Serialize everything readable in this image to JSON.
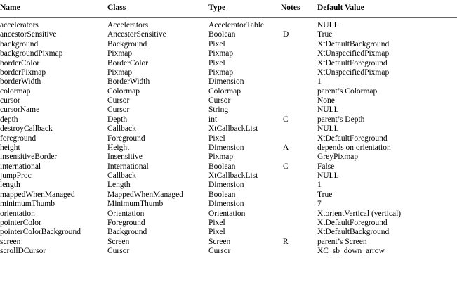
{
  "table": {
    "headers": [
      "Name",
      "Class",
      "Type",
      "Notes",
      "Default Value"
    ],
    "rows": [
      [
        "accelerators",
        "Accelerators",
        "AcceleratorTable",
        "",
        "NULL"
      ],
      [
        "ancestorSensitive",
        "AncestorSensitive",
        "Boolean",
        "D",
        "True"
      ],
      [
        "background",
        "Background",
        "Pixel",
        "",
        "XtDefaultBackground"
      ],
      [
        "backgroundPixmap",
        "Pixmap",
        "Pixmap",
        "",
        "XtUnspecifiedPixmap"
      ],
      [
        "borderColor",
        "BorderColor",
        "Pixel",
        "",
        "XtDefaultForeground"
      ],
      [
        "borderPixmap",
        "Pixmap",
        "Pixmap",
        "",
        "XtUnspecifiedPixmap"
      ],
      [
        "borderWidth",
        "BorderWidth",
        "Dimension",
        "",
        "1"
      ],
      [
        "colormap",
        "Colormap",
        "Colormap",
        "",
        "parent’s Colormap"
      ],
      [
        "cursor",
        "Cursor",
        "Cursor",
        "",
        "None"
      ],
      [
        "cursorName",
        "Cursor",
        "String",
        "",
        "NULL"
      ],
      [
        "depth",
        "Depth",
        "int",
        "C",
        "parent’s Depth"
      ],
      [
        "destroyCallback",
        "Callback",
        "XtCallbackList",
        "",
        "NULL"
      ],
      [
        "foreground",
        "Foreground",
        "Pixel",
        "",
        "XtDefaultForeground"
      ],
      [
        "height",
        "Height",
        "Dimension",
        "A",
        "depends on orientation"
      ],
      [
        "insensitiveBorder",
        "Insensitive",
        "Pixmap",
        "",
        "GreyPixmap"
      ],
      [
        "international",
        "International",
        "Boolean",
        "C",
        "False"
      ],
      [
        "jumpProc",
        "Callback",
        "XtCallbackList",
        "",
        "NULL"
      ],
      [
        "length",
        "Length",
        "Dimension",
        "",
        "1"
      ],
      [
        "mappedWhenManaged",
        "MappedWhenManaged",
        "Boolean",
        "",
        "True"
      ],
      [
        "minimumThumb",
        "MinimumThumb",
        "Dimension",
        "",
        "7"
      ],
      [
        "orientation",
        "Orientation",
        "Orientation",
        "",
        "XtorientVertical (vertical)"
      ],
      [
        "pointerColor",
        "Foreground",
        "Pixel",
        "",
        "XtDefaultForeground"
      ],
      [
        "pointerColorBackground",
        "Background",
        "Pixel",
        "",
        "XtDefaultBackground"
      ],
      [
        "screen",
        "Screen",
        "Screen",
        "R",
        "parent’s Screen"
      ],
      [
        "scrollDCursor",
        "Cursor",
        "Cursor",
        "",
        "XC_sb_down_arrow"
      ]
    ]
  }
}
